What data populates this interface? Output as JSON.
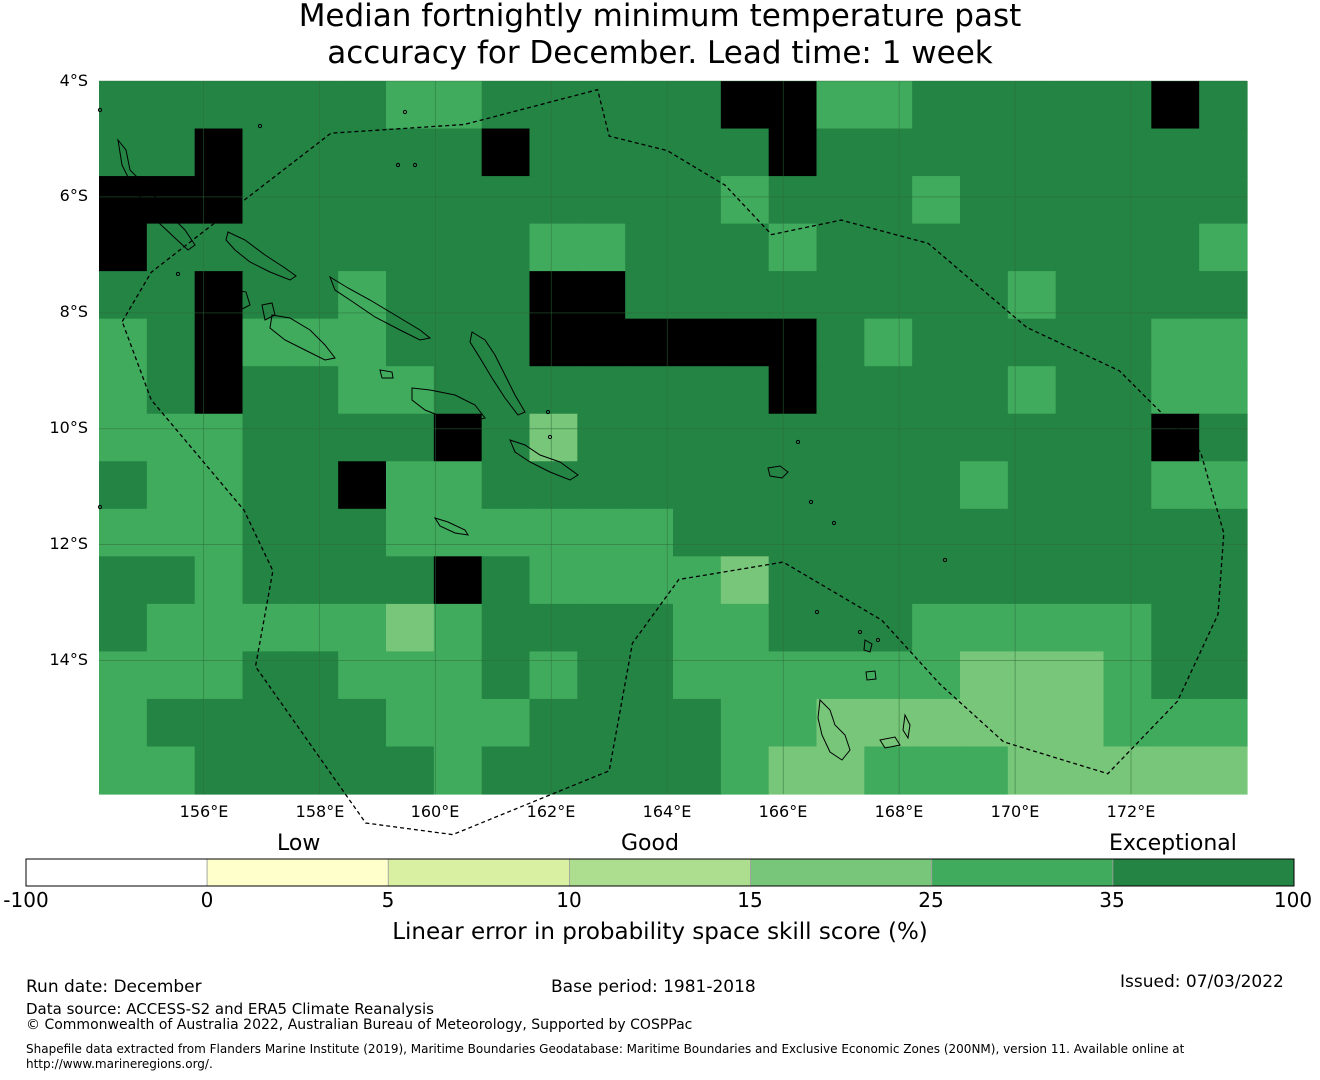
{
  "title": {
    "line1": "Median fortnightly minimum temperature past",
    "line2": "accuracy for December. Lead time: 1 week"
  },
  "map": {
    "lon_range": [
      154.2,
      174.0
    ],
    "lat_range": [
      -16.3,
      -4.0
    ],
    "grid_columns": 24,
    "grid_rows": 15,
    "cell_size_deg": 0.83,
    "latitude_labels": [
      "4°S",
      "6°S",
      "8°S",
      "10°S",
      "12°S",
      "14°S"
    ],
    "latitude_values": [
      -4,
      -6,
      -8,
      -10,
      -12,
      -14
    ],
    "longitude_labels": [
      "156°E",
      "158°E",
      "160°E",
      "162°E",
      "164°E",
      "166°E",
      "168°E",
      "170°E",
      "172°E"
    ],
    "longitude_values": [
      156,
      158,
      160,
      162,
      164,
      166,
      168,
      170,
      172
    ],
    "skill_class_grid": [
      "666666556666677556666676",
      "667666667666667666666666",
      "777666666666656665666666",
      "766666666556665666666665",
      "667665666776666666656666",
      "567555666777777656666655",
      "567665566666667666656655",
      "555666676466666666666676",
      "655667556666666666566655",
      "555666555555666666666666",
      "665666676555546666666666",
      "655555456666556665555566",
      "555665556566555555444566",
      "566666555666655444444555",
      "556666656666654455544444"
    ],
    "eez_boundary": [
      [
        154.6,
        -8.15
      ],
      [
        155.1,
        -7.3
      ],
      [
        156.0,
        -6.6
      ],
      [
        158.2,
        -4.9
      ],
      [
        160.5,
        -4.75
      ],
      [
        162.8,
        -4.15
      ],
      [
        163.0,
        -4.95
      ],
      [
        164.0,
        -5.2
      ],
      [
        165.0,
        -5.8
      ],
      [
        165.8,
        -6.65
      ],
      [
        167.0,
        -6.4
      ],
      [
        168.5,
        -6.8
      ],
      [
        170.2,
        -8.25
      ],
      [
        171.8,
        -9.0
      ],
      [
        173.2,
        -10.4
      ],
      [
        173.6,
        -11.8
      ],
      [
        173.5,
        -13.2
      ],
      [
        172.8,
        -14.7
      ],
      [
        171.6,
        -15.95
      ],
      [
        169.8,
        -15.4
      ],
      [
        168.7,
        -14.4
      ],
      [
        167.7,
        -13.3
      ],
      [
        166.0,
        -12.3
      ],
      [
        164.2,
        -12.6
      ],
      [
        163.4,
        -13.7
      ],
      [
        163.0,
        -15.9
      ],
      [
        160.3,
        -17.0
      ],
      [
        158.8,
        -16.8
      ],
      [
        156.9,
        -14.1
      ],
      [
        157.2,
        -12.45
      ],
      [
        156.7,
        -11.4
      ],
      [
        155.1,
        -9.5
      ],
      [
        154.6,
        -8.15
      ]
    ]
  },
  "colorbar": {
    "category_labels": {
      "low": "Low",
      "good": "Good",
      "exceptional": "Exceptional"
    },
    "ticks": [
      "-100",
      "0",
      "5",
      "10",
      "15",
      "25",
      "35",
      "100"
    ],
    "colors": [
      "#ffffff",
      "#ffffcc",
      "#d9f0a3",
      "#addd8e",
      "#78c679",
      "#41ab5d",
      "#238443"
    ],
    "title": "Linear error in probability space skill score (%)"
  },
  "footer": {
    "run_date": "Run date: December",
    "base_period": "Base period: 1981-2018",
    "issued": "Issued: 07/03/2022",
    "data_source": "Data source: ACCESS-S2 and ERA5 Climate Reanalysis",
    "copyright": "© Commonwealth of Australia 2022, Australian Bureau of Meteorology, Supported by COSPPac",
    "shapefile_line1": "Shapefile data extracted from Flanders Marine Institute (2019), Maritime Boundaries Geodatabase: Maritime Boundaries and Exclusive Economic Zones (200NM), version 11. Available online at",
    "shapefile_line2": "http://www.marineregions.org/."
  }
}
